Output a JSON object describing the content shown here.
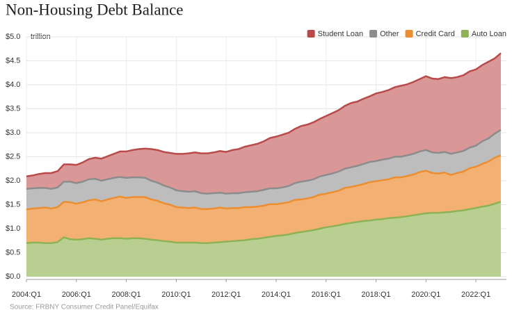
{
  "chart_data": {
    "type": "stacked-area",
    "title": "Non-Housing Debt Balance",
    "y_unit": "trillion",
    "source": "Source: FRBNY Consumer Credit Panel/Equifax",
    "categories": [
      "2004:Q1",
      null,
      null,
      null,
      null,
      null,
      null,
      null,
      "2006:Q1",
      null,
      null,
      null,
      null,
      null,
      null,
      null,
      "2008:Q1",
      null,
      null,
      null,
      null,
      null,
      null,
      null,
      "2010:Q1",
      null,
      null,
      null,
      null,
      null,
      null,
      null,
      "2012:Q1",
      null,
      null,
      null,
      null,
      null,
      null,
      null,
      "2014:Q1",
      null,
      null,
      null,
      null,
      null,
      null,
      null,
      "2016:Q1",
      null,
      null,
      null,
      null,
      null,
      null,
      null,
      "2018:Q1",
      null,
      null,
      null,
      null,
      null,
      null,
      null,
      "2020:Q1",
      null,
      null,
      null,
      null,
      null,
      null,
      null,
      "2022:Q1",
      null,
      null,
      null,
      null
    ],
    "series": [
      {
        "name": "Auto Loan",
        "color": "#8db255",
        "fill": "#b9cf92",
        "values": [
          0.7,
          0.71,
          0.71,
          0.7,
          0.7,
          0.72,
          0.82,
          0.78,
          0.77,
          0.78,
          0.8,
          0.79,
          0.77,
          0.79,
          0.8,
          0.8,
          0.79,
          0.8,
          0.8,
          0.79,
          0.77,
          0.76,
          0.74,
          0.73,
          0.71,
          0.71,
          0.71,
          0.71,
          0.7,
          0.7,
          0.71,
          0.72,
          0.73,
          0.74,
          0.75,
          0.76,
          0.78,
          0.79,
          0.81,
          0.83,
          0.85,
          0.86,
          0.88,
          0.91,
          0.93,
          0.95,
          0.97,
          1.0,
          1.03,
          1.05,
          1.07,
          1.1,
          1.12,
          1.14,
          1.16,
          1.17,
          1.19,
          1.2,
          1.22,
          1.23,
          1.24,
          1.26,
          1.28,
          1.3,
          1.32,
          1.33,
          1.33,
          1.34,
          1.35,
          1.37,
          1.38,
          1.41,
          1.43,
          1.46,
          1.48,
          1.52,
          1.56
        ]
      },
      {
        "name": "Credit Card",
        "color": "#ec8e2f",
        "fill": "#f2b173",
        "values": [
          0.7,
          0.71,
          0.72,
          0.74,
          0.72,
          0.73,
          0.74,
          0.77,
          0.75,
          0.77,
          0.79,
          0.82,
          0.8,
          0.82,
          0.84,
          0.87,
          0.85,
          0.86,
          0.86,
          0.87,
          0.84,
          0.82,
          0.79,
          0.77,
          0.74,
          0.73,
          0.72,
          0.73,
          0.71,
          0.71,
          0.71,
          0.72,
          0.69,
          0.69,
          0.68,
          0.69,
          0.67,
          0.67,
          0.67,
          0.68,
          0.66,
          0.67,
          0.67,
          0.69,
          0.68,
          0.68,
          0.69,
          0.71,
          0.7,
          0.71,
          0.72,
          0.75,
          0.75,
          0.76,
          0.77,
          0.8,
          0.8,
          0.81,
          0.81,
          0.84,
          0.83,
          0.84,
          0.85,
          0.88,
          0.89,
          0.83,
          0.82,
          0.83,
          0.77,
          0.79,
          0.81,
          0.85,
          0.86,
          0.89,
          0.92,
          0.96,
          0.97
        ]
      },
      {
        "name": "Other",
        "color": "#8c8c8c",
        "fill": "#bdbdbd",
        "values": [
          0.43,
          0.42,
          0.42,
          0.41,
          0.41,
          0.41,
          0.42,
          0.43,
          0.43,
          0.43,
          0.44,
          0.43,
          0.43,
          0.42,
          0.42,
          0.41,
          0.42,
          0.41,
          0.41,
          0.4,
          0.39,
          0.38,
          0.37,
          0.36,
          0.35,
          0.34,
          0.34,
          0.34,
          0.33,
          0.32,
          0.32,
          0.31,
          0.31,
          0.31,
          0.31,
          0.31,
          0.32,
          0.32,
          0.33,
          0.33,
          0.33,
          0.33,
          0.34,
          0.35,
          0.37,
          0.37,
          0.37,
          0.38,
          0.39,
          0.39,
          0.4,
          0.4,
          0.41,
          0.41,
          0.42,
          0.42,
          0.42,
          0.43,
          0.43,
          0.43,
          0.43,
          0.43,
          0.43,
          0.43,
          0.43,
          0.43,
          0.43,
          0.43,
          0.44,
          0.43,
          0.43,
          0.43,
          0.44,
          0.47,
          0.48,
          0.5,
          0.53
        ]
      },
      {
        "name": "Student Loan",
        "color": "#b84a4a",
        "fill": "#d99797",
        "values": [
          0.26,
          0.27,
          0.29,
          0.31,
          0.33,
          0.34,
          0.36,
          0.36,
          0.38,
          0.4,
          0.42,
          0.44,
          0.46,
          0.48,
          0.5,
          0.53,
          0.55,
          0.57,
          0.59,
          0.61,
          0.66,
          0.68,
          0.7,
          0.72,
          0.76,
          0.78,
          0.8,
          0.81,
          0.83,
          0.84,
          0.85,
          0.87,
          0.87,
          0.9,
          0.92,
          0.95,
          0.97,
          0.99,
          1.01,
          1.05,
          1.08,
          1.1,
          1.11,
          1.13,
          1.16,
          1.17,
          1.19,
          1.2,
          1.23,
          1.26,
          1.28,
          1.31,
          1.34,
          1.34,
          1.36,
          1.37,
          1.41,
          1.41,
          1.43,
          1.45,
          1.48,
          1.48,
          1.5,
          1.51,
          1.54,
          1.54,
          1.54,
          1.56,
          1.58,
          1.57,
          1.58,
          1.59,
          1.59,
          1.59,
          1.6,
          1.57,
          1.6
        ]
      }
    ],
    "ylim": [
      0,
      5
    ],
    "yticks": [
      {
        "value": 0,
        "label": "$0.0"
      },
      {
        "value": 0.5,
        "label": "$0.5"
      },
      {
        "value": 1,
        "label": "$1.0"
      },
      {
        "value": 1.5,
        "label": "$1.5"
      },
      {
        "value": 2,
        "label": "$2.0"
      },
      {
        "value": 2.5,
        "label": "$2.5"
      },
      {
        "value": 3,
        "label": "$3.0"
      },
      {
        "value": 3.5,
        "label": "$3.5"
      },
      {
        "value": 4,
        "label": "$4.0"
      },
      {
        "value": 4.5,
        "label": "$4.5"
      },
      {
        "value": 5,
        "label": "$5.0"
      }
    ],
    "grid": true,
    "legend": "top-right"
  }
}
